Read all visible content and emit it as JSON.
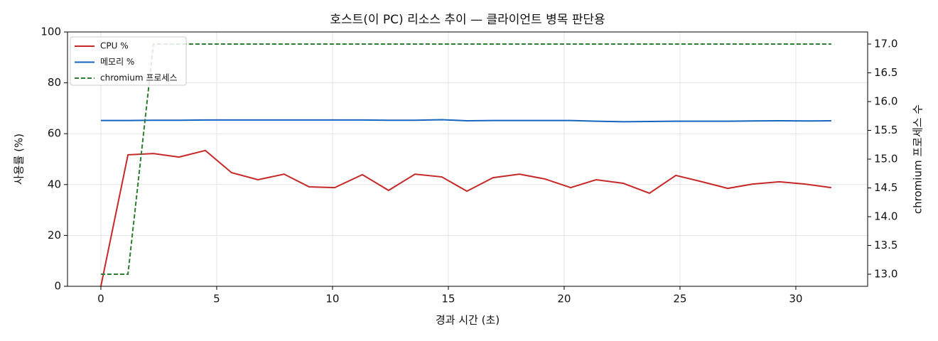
{
  "chart_data": {
    "type": "line",
    "title": "호스트(이 PC) 리소스 추이 — 클라이언트 병목 판단용",
    "x_label": "경과 시간 (초)",
    "y_label": "사용률 (%)",
    "y2_label": "chromium 프로세스 수",
    "x": [
      0,
      1.17,
      2.27,
      3.37,
      4.51,
      5.64,
      6.78,
      7.91,
      8.99,
      10.09,
      11.29,
      12.42,
      13.56,
      14.72,
      15.8,
      16.93,
      18.07,
      19.17,
      20.28,
      21.38,
      22.55,
      23.68,
      24.82,
      25.95,
      27.06,
      28.13,
      29.29,
      30.4,
      31.53
    ],
    "series": [
      {
        "name": "CPU %",
        "color": "#c62828",
        "linestyle": "solid",
        "values": [
          0,
          51.7,
          52.2,
          50.8,
          53.4,
          44.7,
          41.9,
          44.1,
          39.1,
          38.8,
          43.9,
          37.7,
          44.1,
          43.0,
          37.4,
          42.7,
          44.1,
          42.2,
          38.8,
          41.9,
          40.5,
          36.6,
          43.6,
          41.1,
          38.5,
          40.2,
          41.1,
          40.2,
          38.8
        ]
      },
      {
        "name": "메모리 %",
        "color": "#1565c0",
        "linestyle": "solid",
        "values": [
          65.2,
          65.2,
          65.3,
          65.3,
          65.4,
          65.4,
          65.4,
          65.4,
          65.4,
          65.4,
          65.4,
          65.3,
          65.3,
          65.5,
          65.1,
          65.2,
          65.2,
          65.2,
          65.2,
          64.9,
          64.7,
          64.8,
          64.9,
          64.9,
          64.9,
          65.0,
          65.1,
          65.0,
          65.1
        ]
      },
      {
        "name": "chromium 프로세스",
        "color": "#2e7d32",
        "linestyle": "dashed",
        "axis": "y2",
        "values": [
          13,
          13,
          17,
          17,
          17,
          17,
          17,
          17,
          17,
          17,
          17,
          17,
          17,
          17,
          17,
          17,
          17,
          17,
          17,
          17,
          17,
          17,
          17,
          17,
          17,
          17,
          17,
          17,
          17
        ]
      }
    ],
    "xlim": [
      -1.44,
      33.1
    ],
    "xticks": [
      0,
      5,
      10,
      15,
      20,
      25,
      30
    ],
    "ylim": [
      0,
      100
    ],
    "yticks": [
      0,
      20,
      40,
      60,
      80,
      100
    ],
    "y2lim": [
      12.79,
      17.21
    ],
    "y2ticks": [
      {
        "value": 13,
        "label": "13.0"
      },
      {
        "value": 13.5,
        "label": "13.5"
      },
      {
        "value": 14,
        "label": "14.0"
      },
      {
        "value": 14.5,
        "label": "14.5"
      },
      {
        "value": 15,
        "label": "15.0"
      },
      {
        "value": 15.5,
        "label": "15.5"
      },
      {
        "value": 16,
        "label": "16.0"
      },
      {
        "value": 16.5,
        "label": "16.5"
      },
      {
        "value": 17,
        "label": "17.0"
      }
    ],
    "grid": true,
    "legend": "upper-left"
  }
}
